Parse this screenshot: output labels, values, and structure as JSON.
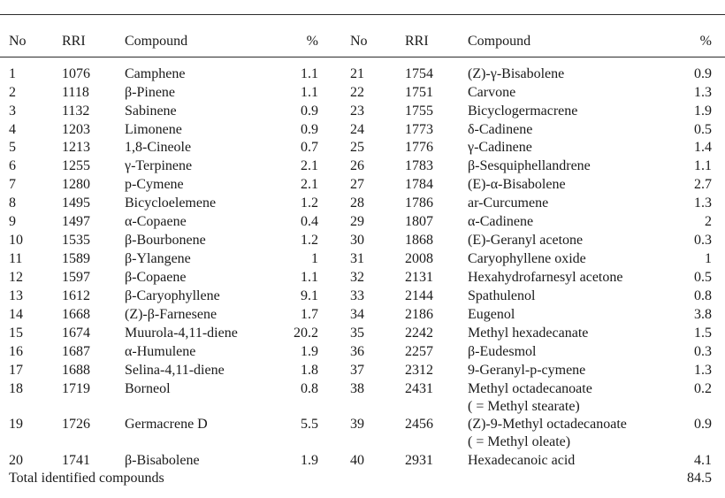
{
  "headers": [
    "No",
    "RRI",
    "Compound",
    "%",
    "No",
    "RRI",
    "Compound",
    "%"
  ],
  "rows": [
    [
      [
        "1",
        "1076",
        "Camphene",
        "1.1"
      ],
      [
        "21",
        "1754",
        "(Z)-γ-Bisabolene",
        "0.9"
      ]
    ],
    [
      [
        "2",
        "1118",
        "β-Pinene",
        "1.1"
      ],
      [
        "22",
        "1751",
        "Carvone",
        "1.3"
      ]
    ],
    [
      [
        "3",
        "1132",
        "Sabinene",
        "0.9"
      ],
      [
        "23",
        "1755",
        "Bicyclogermacrene",
        "1.9"
      ]
    ],
    [
      [
        "4",
        "1203",
        "Limonene",
        "0.9"
      ],
      [
        "24",
        "1773",
        "δ-Cadinene",
        "0.5"
      ]
    ],
    [
      [
        "5",
        "1213",
        "1,8-Cineole",
        "0.7"
      ],
      [
        "25",
        "1776",
        "γ-Cadinene",
        "1.4"
      ]
    ],
    [
      [
        "6",
        "1255",
        "γ-Terpinene",
        "2.1"
      ],
      [
        "26",
        "1783",
        "β-Sesquiphellandrene",
        "1.1"
      ]
    ],
    [
      [
        "7",
        "1280",
        "p-Cymene",
        "2.1"
      ],
      [
        "27",
        "1784",
        "(E)-α-Bisabolene",
        "2.7"
      ]
    ],
    [
      [
        "8",
        "1495",
        "Bicycloelemene",
        "1.2"
      ],
      [
        "28",
        "1786",
        "ar-Curcumene",
        "1.3"
      ]
    ],
    [
      [
        "9",
        "1497",
        "α-Copaene",
        "0.4"
      ],
      [
        "29",
        "1807",
        "α-Cadinene",
        "2"
      ]
    ],
    [
      [
        "10",
        "1535",
        "β-Bourbonene",
        "1.2"
      ],
      [
        "30",
        "1868",
        "(E)-Geranyl acetone",
        "0.3"
      ]
    ],
    [
      [
        "11",
        "1589",
        "β-Ylangene",
        "1"
      ],
      [
        "31",
        "2008",
        "Caryophyllene oxide",
        "1"
      ]
    ],
    [
      [
        "12",
        "1597",
        "β-Copaene",
        "1.1"
      ],
      [
        "32",
        "2131",
        "Hexahydrofarnesyl acetone",
        "0.5"
      ]
    ],
    [
      [
        "13",
        "1612",
        "β-Caryophyllene",
        "9.1"
      ],
      [
        "33",
        "2144",
        "Spathulenol",
        "0.8"
      ]
    ],
    [
      [
        "14",
        "1668",
        "(Z)-β-Farnesene",
        "1.7"
      ],
      [
        "34",
        "2186",
        "Eugenol",
        "3.8"
      ]
    ],
    [
      [
        "15",
        "1674",
        "Muurola-4,11-diene",
        "20.2"
      ],
      [
        "35",
        "2242",
        "Methyl hexadecanate",
        "1.5"
      ]
    ],
    [
      [
        "16",
        "1687",
        "α-Humulene",
        "1.9"
      ],
      [
        "36",
        "2257",
        "β-Eudesmol",
        "0.3"
      ]
    ],
    [
      [
        "17",
        "1688",
        "Selina-4,11-diene",
        "1.8"
      ],
      [
        "37",
        "2312",
        "9-Geranyl-p-cymene",
        "1.3"
      ]
    ],
    [
      [
        "18",
        "1719",
        "Borneol",
        "0.8"
      ],
      [
        "38",
        "2431",
        "Methyl octadecanoate",
        "0.2"
      ]
    ],
    [
      [
        "",
        "",
        "",
        "",
        ""
      ],
      [
        "",
        "",
        "( = Methyl stearate)",
        ""
      ]
    ],
    [
      [
        "19",
        "1726",
        "Germacrene D",
        "5.5"
      ],
      [
        "39",
        "2456",
        "(Z)-9-Methyl octadecanoate",
        "0.9"
      ]
    ],
    [
      [
        "",
        "",
        "",
        ""
      ],
      [
        "",
        "",
        "( = Methyl oleate)",
        ""
      ]
    ],
    [
      [
        "20",
        "1741",
        "β-Bisabolene",
        "1.9"
      ],
      [
        "40",
        "2931",
        "Hexadecanoic acid",
        "4.1"
      ]
    ]
  ],
  "footer": {
    "label": "Total identified compounds",
    "total": "84.5"
  }
}
